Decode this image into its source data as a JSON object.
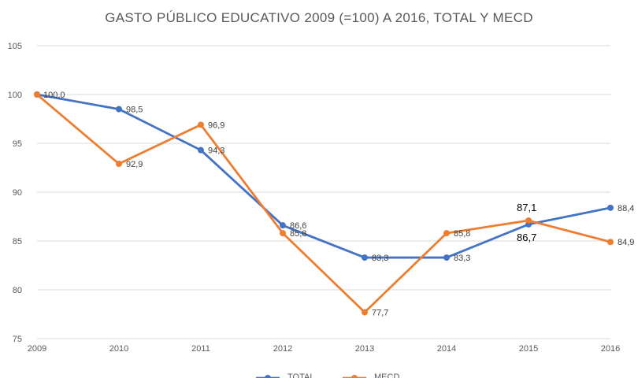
{
  "chart_data": {
    "type": "line",
    "title": "GASTO PÚBLICO EDUCATIVO 2009 (=100) A 2016, TOTAL Y MECD",
    "xlabel": "",
    "ylabel": "",
    "x": [
      "2009",
      "2010",
      "2011",
      "2012",
      "2013",
      "2014",
      "2015",
      "2016"
    ],
    "ylim": [
      75,
      105
    ],
    "yticks": [
      "75",
      "80",
      "85",
      "90",
      "95",
      "100",
      "105"
    ],
    "grid": true,
    "legend_position": "bottom",
    "series": [
      {
        "name": "TOTAL",
        "color": "#4472C4",
        "values": [
          100.0,
          98.5,
          94.3,
          86.6,
          83.3,
          83.3,
          86.7,
          88.4
        ],
        "labels": [
          "100,0",
          "98,5",
          "94,3",
          "86,6",
          "83,3",
          "83,3",
          "86,7",
          "88,4"
        ]
      },
      {
        "name": "MECD",
        "color": "#ED7D31",
        "values": [
          100.0,
          92.9,
          96.9,
          85.8,
          77.7,
          85.8,
          87.1,
          84.9
        ],
        "labels": [
          "",
          "92,9",
          "96,9",
          "85,8",
          "77,7",
          "85,8",
          "87,1",
          "84,9"
        ]
      }
    ]
  }
}
